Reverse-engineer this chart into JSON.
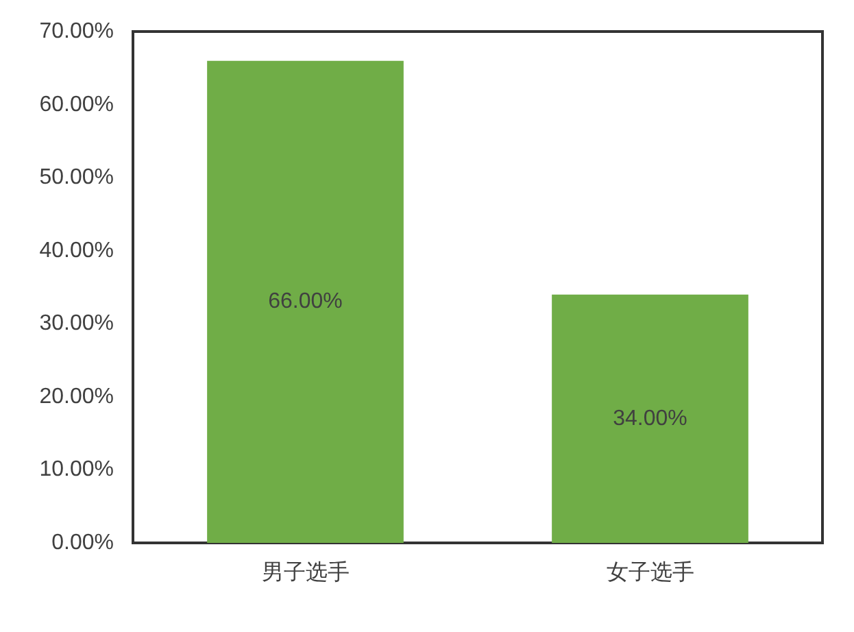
{
  "chart_data": {
    "type": "bar",
    "categories": [
      "男子选手",
      "女子选手"
    ],
    "values": [
      66,
      34
    ],
    "color": "#70ad47",
    "value_labels": [
      "66.00%",
      "34.00%"
    ],
    "ylim": [
      0,
      70
    ],
    "yticks": [
      {
        "value": 0,
        "label": "0.00%"
      },
      {
        "value": 10,
        "label": "10.00%"
      },
      {
        "value": 20,
        "label": "20.00%"
      },
      {
        "value": 30,
        "label": "30.00%"
      },
      {
        "value": 40,
        "label": "40.00%"
      },
      {
        "value": 50,
        "label": "50.00%"
      },
      {
        "value": 60,
        "label": "60.00%"
      },
      {
        "value": 70,
        "label": "70.00%"
      }
    ]
  }
}
